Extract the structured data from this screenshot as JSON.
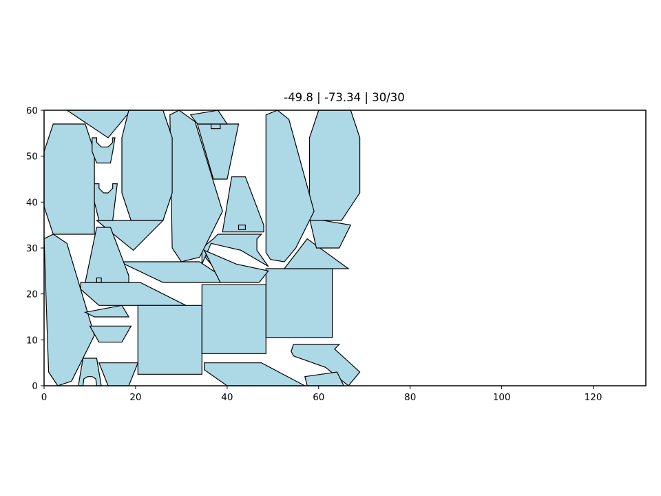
{
  "chart_data": {
    "type": "polygon-layout",
    "title": "-49.8 | -73.34 | 30/30",
    "xlabel": "",
    "ylabel": "",
    "xlim": [
      0,
      131.5
    ],
    "ylim": [
      0,
      60
    ],
    "xticks": [
      0,
      20,
      40,
      60,
      80,
      100,
      120
    ],
    "yticks": [
      0,
      10,
      20,
      30,
      40,
      50,
      60
    ],
    "grid": false,
    "fill_color": "#add8e6",
    "edge_color": "#000000",
    "polygons": [
      [
        [
          0,
          32
        ],
        [
          2,
          33
        ],
        [
          5,
          31
        ],
        [
          11,
          11
        ],
        [
          6,
          1
        ],
        [
          3,
          0
        ],
        [
          1,
          3
        ]
      ],
      [
        [
          0,
          51
        ],
        [
          2,
          57
        ],
        [
          9,
          57
        ],
        [
          11,
          51
        ],
        [
          11,
          33
        ],
        [
          2,
          33
        ],
        [
          0,
          39
        ]
      ],
      [
        [
          5,
          60
        ],
        [
          19,
          60
        ],
        [
          14,
          54
        ]
      ],
      [
        [
          7.5,
          0
        ],
        [
          8.5,
          6
        ],
        [
          11.5,
          6
        ],
        [
          12.5,
          0
        ],
        [
          11.5,
          0
        ],
        [
          11.3,
          1.5
        ],
        [
          10.5,
          2
        ],
        [
          9.5,
          2
        ],
        [
          8.7,
          1.5
        ],
        [
          8.5,
          0
        ]
      ],
      [
        [
          12,
          5
        ],
        [
          20.5,
          5
        ],
        [
          18.5,
          0
        ],
        [
          14,
          0
        ]
      ],
      [
        [
          10,
          13
        ],
        [
          19,
          13
        ],
        [
          17,
          9.5
        ],
        [
          12,
          9.5
        ]
      ],
      [
        [
          9,
          16
        ],
        [
          17,
          17.5
        ],
        [
          18.5,
          15
        ],
        [
          11,
          15
        ]
      ],
      [
        [
          8,
          21
        ],
        [
          12,
          17.5
        ],
        [
          31,
          17.5
        ],
        [
          21,
          22.5
        ],
        [
          8,
          22.5
        ]
      ],
      [
        [
          20.5,
          2.5
        ],
        [
          34.5,
          2.5
        ],
        [
          34.5,
          17.5
        ],
        [
          20.5,
          17.5
        ]
      ],
      [
        [
          34.5,
          7
        ],
        [
          48.5,
          7
        ],
        [
          48.5,
          22
        ],
        [
          34.5,
          22
        ]
      ],
      [
        [
          48.5,
          10.5
        ],
        [
          63,
          10.5
        ],
        [
          63,
          25.5
        ],
        [
          48.5,
          25.5
        ]
      ],
      [
        [
          52.5,
          25.5
        ],
        [
          66.5,
          25.5
        ],
        [
          57.5,
          32
        ]
      ],
      [
        [
          58,
          36.5
        ],
        [
          67,
          35
        ],
        [
          64.5,
          30
        ],
        [
          59.5,
          30
        ]
      ],
      [
        [
          58,
          36
        ],
        [
          65,
          36
        ],
        [
          69,
          42
        ],
        [
          69,
          54
        ],
        [
          67,
          60
        ],
        [
          60,
          60
        ],
        [
          58,
          54
        ],
        [
          58,
          42
        ]
      ],
      [
        [
          51,
          60
        ],
        [
          53.5,
          58
        ],
        [
          59,
          38
        ],
        [
          55,
          30
        ],
        [
          52.5,
          27
        ],
        [
          49.5,
          27.5
        ],
        [
          48.5,
          29
        ],
        [
          48.5,
          59
        ]
      ],
      [
        [
          54.5,
          9
        ],
        [
          64.5,
          9
        ],
        [
          63.5,
          8
        ],
        [
          69,
          3
        ],
        [
          66.5,
          0
        ],
        [
          61.5,
          4
        ],
        [
          54.5,
          6.5
        ],
        [
          54,
          7.5
        ]
      ],
      [
        [
          57,
          2
        ],
        [
          64,
          3
        ],
        [
          65.5,
          0
        ],
        [
          57.5,
          0
        ]
      ],
      [
        [
          35,
          5
        ],
        [
          47.5,
          5
        ],
        [
          57,
          0
        ],
        [
          40,
          0
        ],
        [
          35,
          3.5
        ]
      ],
      [
        [
          34,
          29.5
        ],
        [
          40.5,
          24
        ],
        [
          48.5,
          25
        ],
        [
          46,
          23
        ],
        [
          38.5,
          22.5
        ],
        [
          26,
          22.5
        ],
        [
          16.5,
          27
        ],
        [
          34,
          27
        ],
        [
          38.5,
          24
        ]
      ],
      [
        [
          34.5,
          26.5
        ],
        [
          36.5,
          31
        ],
        [
          43,
          29.5
        ],
        [
          49,
          26
        ],
        [
          46.5,
          29.5
        ],
        [
          46.5,
          32
        ],
        [
          47.5,
          33
        ],
        [
          38,
          33
        ],
        [
          37,
          32
        ],
        [
          34.5,
          30
        ]
      ],
      [
        [
          35,
          29.5
        ],
        [
          38.5,
          22.5
        ],
        [
          47,
          22.5
        ],
        [
          49,
          25
        ],
        [
          42,
          26.5
        ]
      ],
      [
        [
          39,
          33.5
        ],
        [
          48,
          33.5
        ],
        [
          48,
          35
        ],
        [
          44,
          45.5
        ],
        [
          41,
          45.5
        ]
      ],
      [
        [
          42.5,
          35
        ],
        [
          44,
          35
        ],
        [
          44,
          34
        ],
        [
          42.5,
          34
        ]
      ],
      [
        [
          33.5,
          57
        ],
        [
          42.5,
          57
        ],
        [
          40,
          45
        ],
        [
          37,
          45
        ]
      ],
      [
        [
          36.5,
          56
        ],
        [
          38.5,
          56
        ],
        [
          38.5,
          57
        ],
        [
          36.5,
          57
        ]
      ],
      [
        [
          32,
          59
        ],
        [
          38,
          60
        ],
        [
          40,
          57
        ],
        [
          33.5,
          57
        ]
      ],
      [
        [
          27.5,
          59
        ],
        [
          29.5,
          60
        ],
        [
          33,
          57.5
        ],
        [
          39,
          38
        ],
        [
          34,
          28
        ],
        [
          30,
          27
        ],
        [
          28,
          30
        ]
      ],
      [
        [
          17,
          54
        ],
        [
          18.5,
          60
        ],
        [
          26,
          60
        ],
        [
          28,
          54
        ],
        [
          28,
          42
        ],
        [
          26,
          36
        ],
        [
          19,
          36
        ],
        [
          17,
          42
        ]
      ],
      [
        [
          11.5,
          36
        ],
        [
          26,
          36
        ],
        [
          19.5,
          29.5
        ]
      ],
      [
        [
          11,
          44
        ],
        [
          12,
          44
        ],
        [
          12,
          43
        ],
        [
          13,
          42
        ],
        [
          14,
          42
        ],
        [
          15,
          43
        ],
        [
          15,
          44
        ],
        [
          16,
          44
        ],
        [
          15.5,
          40
        ],
        [
          15,
          36
        ],
        [
          12,
          36
        ],
        [
          11,
          40
        ]
      ],
      [
        [
          10.5,
          54
        ],
        [
          11.5,
          54
        ],
        [
          11.5,
          53
        ],
        [
          12.5,
          52
        ],
        [
          14,
          52
        ],
        [
          15,
          53
        ],
        [
          15,
          54
        ],
        [
          15.5,
          54
        ],
        [
          15,
          51
        ],
        [
          14.5,
          48.5
        ],
        [
          11.5,
          48.5
        ],
        [
          10.5,
          51
        ]
      ],
      [
        [
          9,
          22.5
        ],
        [
          18.5,
          22.5
        ],
        [
          18.5,
          24
        ],
        [
          14.5,
          34.5
        ],
        [
          11.5,
          34.5
        ]
      ],
      [
        [
          11.5,
          22.5
        ],
        [
          12.5,
          22.5
        ],
        [
          12.5,
          23.5
        ],
        [
          11.5,
          23.5
        ]
      ]
    ]
  }
}
